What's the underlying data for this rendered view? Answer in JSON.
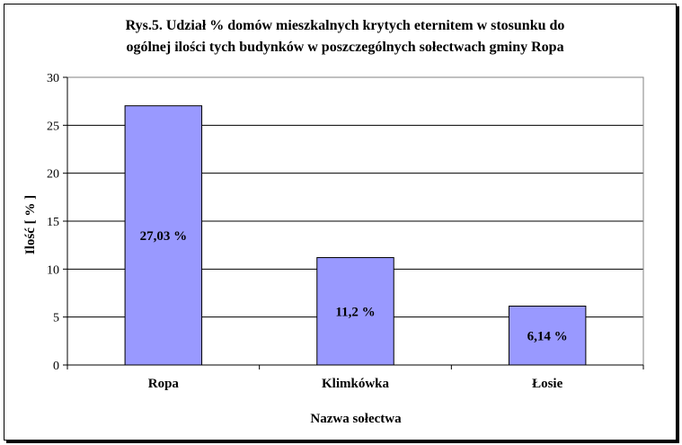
{
  "chart_data": {
    "type": "bar",
    "title_lines": [
      "Rys.5. Udział % domów mieszkalnych krytych eternitem w stosunku do",
      "ogólnej ilości tych budynków w poszczególnych sołectwach gminy Ropa"
    ],
    "xlabel": "Nazwa sołectwa",
    "ylabel": "Ilość  [ % ]",
    "categories": [
      "Ropa",
      "Klimkówka",
      "Łosie"
    ],
    "values": [
      27.03,
      11.2,
      6.14
    ],
    "data_labels": [
      "27,03 %",
      "11,2 %",
      "6,14 %"
    ],
    "ylim": [
      0,
      30
    ],
    "yticks": [
      0,
      5,
      10,
      15,
      20,
      25,
      30
    ],
    "grid": true,
    "legend": false,
    "bar_color": "#9999ff",
    "plot_border_color": "#808080"
  }
}
